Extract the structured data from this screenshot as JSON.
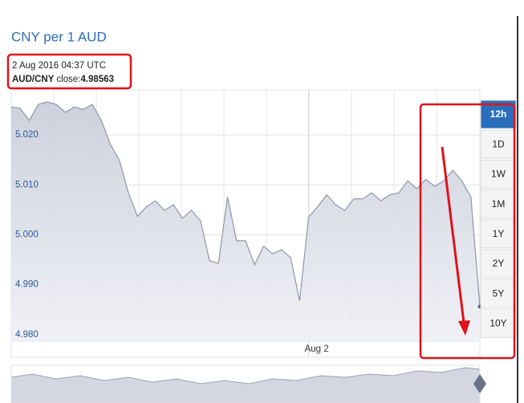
{
  "chart_data": {
    "type": "area",
    "title": "CNY per 1 AUD",
    "timestamp": "2 Aug 2016 04:37 UTC",
    "pair": "AUD/CNY",
    "close_label": "close:",
    "categories": [
      null,
      null,
      null,
      null,
      null,
      null,
      null,
      null,
      null,
      null,
      null,
      null,
      null,
      null,
      null,
      null,
      null,
      null,
      null,
      null,
      null,
      null,
      null,
      null,
      null,
      null,
      null,
      null,
      null,
      null,
      null,
      null,
      null,
      "Aug 2",
      null,
      null,
      null,
      null,
      null,
      null,
      null,
      null,
      null,
      null,
      null,
      null,
      null,
      null,
      null,
      null,
      null,
      null,
      null
    ],
    "series": [
      {
        "name": "AUD/CNY",
        "color": "#8f95ab",
        "values": [
          5.0256,
          5.0253,
          5.0229,
          5.0261,
          5.0266,
          5.0261,
          5.0245,
          5.0256,
          5.0251,
          5.0261,
          5.0229,
          5.0181,
          5.0149,
          5.0084,
          5.0037,
          5.0056,
          5.0068,
          5.0049,
          5.006,
          5.0033,
          5.0049,
          5.0028,
          4.9948,
          4.9943,
          5.0076,
          4.9988,
          4.9988,
          4.994,
          4.9977,
          4.9962,
          4.997,
          4.9954,
          4.9868,
          5.0036,
          5.0056,
          5.008,
          5.006,
          5.0049,
          5.0072,
          5.0072,
          5.0084,
          5.0068,
          5.008,
          5.0084,
          5.0108,
          5.0092,
          5.0111,
          5.0097,
          5.0108,
          5.0129,
          5.0108,
          5.0076,
          4.98563
        ]
      }
    ],
    "ylim": [
      4.9787,
      5.029
    ],
    "yticks": [
      {
        "value": 5.02,
        "label": "5.020"
      },
      {
        "value": 5.01,
        "label": "5.010"
      },
      {
        "value": 5,
        "label": "5.000"
      },
      {
        "value": 4.99,
        "label": "4.990"
      },
      {
        "value": 4.98,
        "label": "4.980"
      }
    ],
    "grid": true,
    "range_options": [
      "12h",
      "1D",
      "1W",
      "1M",
      "1Y",
      "2Y",
      "5Y",
      "10Y"
    ],
    "selected_range_index": 0
  }
}
